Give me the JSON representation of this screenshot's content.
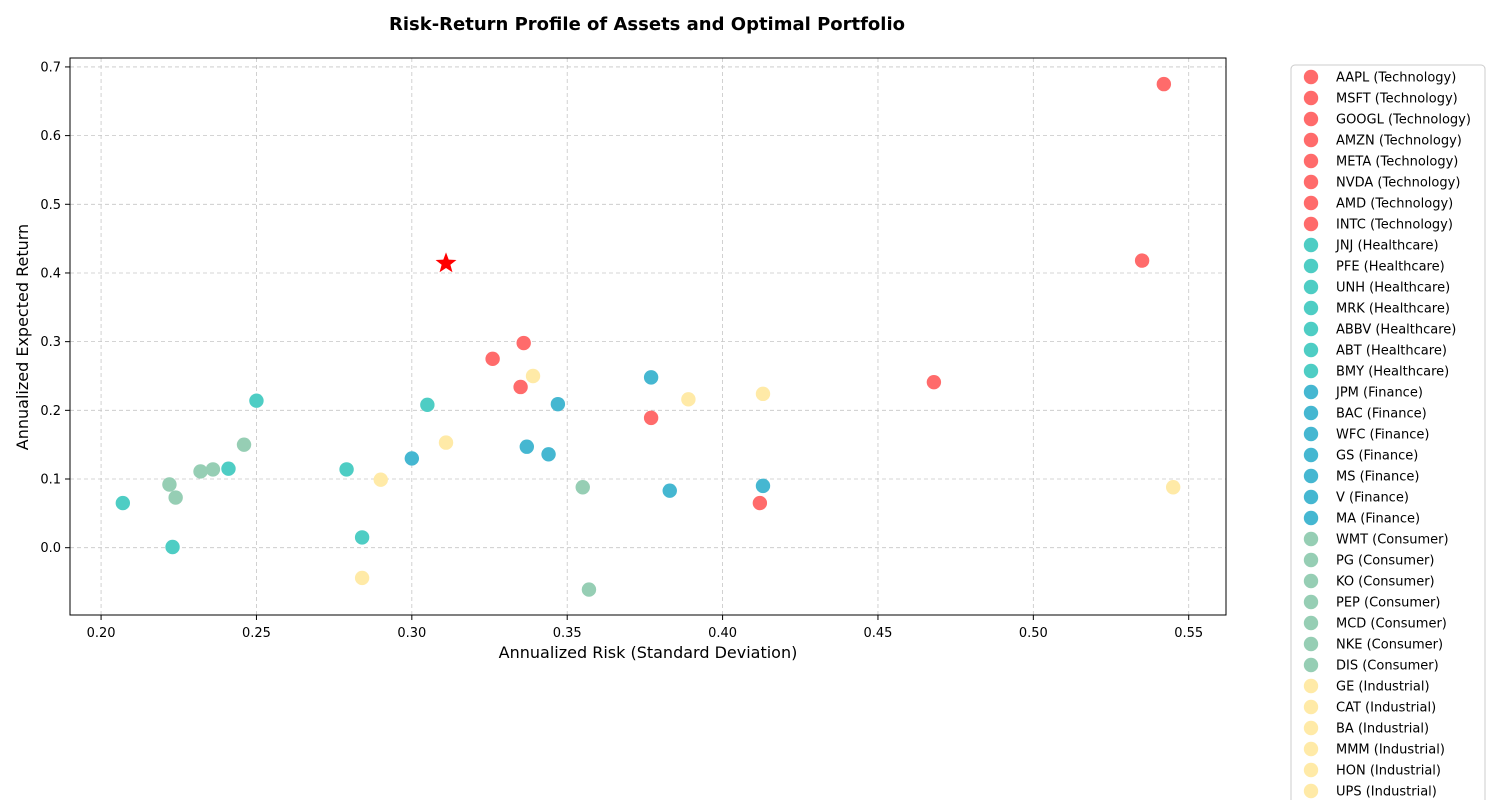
{
  "chart_data": {
    "type": "scatter",
    "title": "Risk-Return Profile of Assets and Optimal Portfolio",
    "xlabel": "Annualized Risk (Standard Deviation)",
    "ylabel": "Annualized Expected Return",
    "xlim": [
      0.19,
      0.562
    ],
    "ylim": [
      -0.098,
      0.713
    ],
    "xticks": [
      0.2,
      0.25,
      0.3,
      0.35,
      0.4,
      0.45,
      0.5,
      0.55
    ],
    "xtick_labels": [
      "0.20",
      "0.25",
      "0.30",
      "0.35",
      "0.40",
      "0.45",
      "0.50",
      "0.55"
    ],
    "yticks": [
      0.0,
      0.1,
      0.2,
      0.3,
      0.4,
      0.5,
      0.6,
      0.7
    ],
    "ytick_labels": [
      "0.0",
      "0.1",
      "0.2",
      "0.3",
      "0.4",
      "0.5",
      "0.6",
      "0.7"
    ],
    "grid": true,
    "legend_position": "outside-right",
    "sector_colors": {
      "Technology": "#ff6b6b",
      "Healthcare": "#4ecdc4",
      "Finance": "#45b7d1",
      "Consumer": "#96ceb4",
      "Industrial": "#ffeaa7"
    },
    "series": [
      {
        "name": "AAPL (Technology)",
        "sector": "Technology",
        "x": 0.326,
        "y": 0.275
      },
      {
        "name": "MSFT (Technology)",
        "sector": "Technology",
        "x": 0.336,
        "y": 0.298
      },
      {
        "name": "GOOGL (Technology)",
        "sector": "Technology",
        "x": 0.335,
        "y": 0.234
      },
      {
        "name": "AMZN (Technology)",
        "sector": "Technology",
        "x": 0.377,
        "y": 0.189
      },
      {
        "name": "META (Technology)",
        "sector": "Technology",
        "x": 0.468,
        "y": 0.241
      },
      {
        "name": "NVDA (Technology)",
        "sector": "Technology",
        "x": 0.542,
        "y": 0.675
      },
      {
        "name": "AMD (Technology)",
        "sector": "Technology",
        "x": 0.535,
        "y": 0.418
      },
      {
        "name": "INTC (Technology)",
        "sector": "Technology",
        "x": 0.412,
        "y": 0.065
      },
      {
        "name": "JNJ (Healthcare)",
        "sector": "Healthcare",
        "x": 0.207,
        "y": 0.065
      },
      {
        "name": "PFE (Healthcare)",
        "sector": "Healthcare",
        "x": 0.223,
        "y": 0.001
      },
      {
        "name": "UNH (Healthcare)",
        "sector": "Healthcare",
        "x": 0.25,
        "y": 0.214
      },
      {
        "name": "MRK (Healthcare)",
        "sector": "Healthcare",
        "x": 0.241,
        "y": 0.115
      },
      {
        "name": "ABBV (Healthcare)",
        "sector": "Healthcare",
        "x": 0.305,
        "y": 0.208
      },
      {
        "name": "ABT (Healthcare)",
        "sector": "Healthcare",
        "x": 0.279,
        "y": 0.114
      },
      {
        "name": "BMY (Healthcare)",
        "sector": "Healthcare",
        "x": 0.284,
        "y": 0.015
      },
      {
        "name": "JPM (Finance)",
        "sector": "Finance",
        "x": 0.3,
        "y": 0.13
      },
      {
        "name": "BAC (Finance)",
        "sector": "Finance",
        "x": 0.337,
        "y": 0.147
      },
      {
        "name": "WFC (Finance)",
        "sector": "Finance",
        "x": 0.344,
        "y": 0.136
      },
      {
        "name": "GS (Finance)",
        "sector": "Finance",
        "x": 0.347,
        "y": 0.209
      },
      {
        "name": "MS (Finance)",
        "sector": "Finance",
        "x": 0.377,
        "y": 0.248
      },
      {
        "name": "V (Finance)",
        "sector": "Finance",
        "x": 0.383,
        "y": 0.083
      },
      {
        "name": "MA (Finance)",
        "sector": "Finance",
        "x": 0.413,
        "y": 0.09
      },
      {
        "name": "WMT (Consumer)",
        "sector": "Consumer",
        "x": 0.222,
        "y": 0.092
      },
      {
        "name": "PG (Consumer)",
        "sector": "Consumer",
        "x": 0.224,
        "y": 0.073
      },
      {
        "name": "KO (Consumer)",
        "sector": "Consumer",
        "x": 0.232,
        "y": 0.111
      },
      {
        "name": "PEP (Consumer)",
        "sector": "Consumer",
        "x": 0.236,
        "y": 0.114
      },
      {
        "name": "MCD (Consumer)",
        "sector": "Consumer",
        "x": 0.246,
        "y": 0.15
      },
      {
        "name": "NKE (Consumer)",
        "sector": "Consumer",
        "x": 0.355,
        "y": 0.088
      },
      {
        "name": "DIS (Consumer)",
        "sector": "Consumer",
        "x": 0.357,
        "y": -0.061
      },
      {
        "name": "GE (Industrial)",
        "sector": "Industrial",
        "x": 0.339,
        "y": 0.25
      },
      {
        "name": "CAT (Industrial)",
        "sector": "Industrial",
        "x": 0.389,
        "y": 0.216
      },
      {
        "name": "BA (Industrial)",
        "sector": "Industrial",
        "x": 0.413,
        "y": 0.224
      },
      {
        "name": "MMM (Industrial)",
        "sector": "Industrial",
        "x": 0.29,
        "y": 0.099
      },
      {
        "name": "HON (Industrial)",
        "sector": "Industrial",
        "x": 0.311,
        "y": 0.153
      },
      {
        "name": "UPS (Industrial)",
        "sector": "Industrial",
        "x": 0.284,
        "y": -0.044
      },
      {
        "sector": "Industrial",
        "x": 0.545,
        "y": 0.088
      }
    ],
    "optimal_portfolio": {
      "x": 0.311,
      "y": 0.414,
      "marker": "star",
      "color": "#ff0000"
    }
  }
}
